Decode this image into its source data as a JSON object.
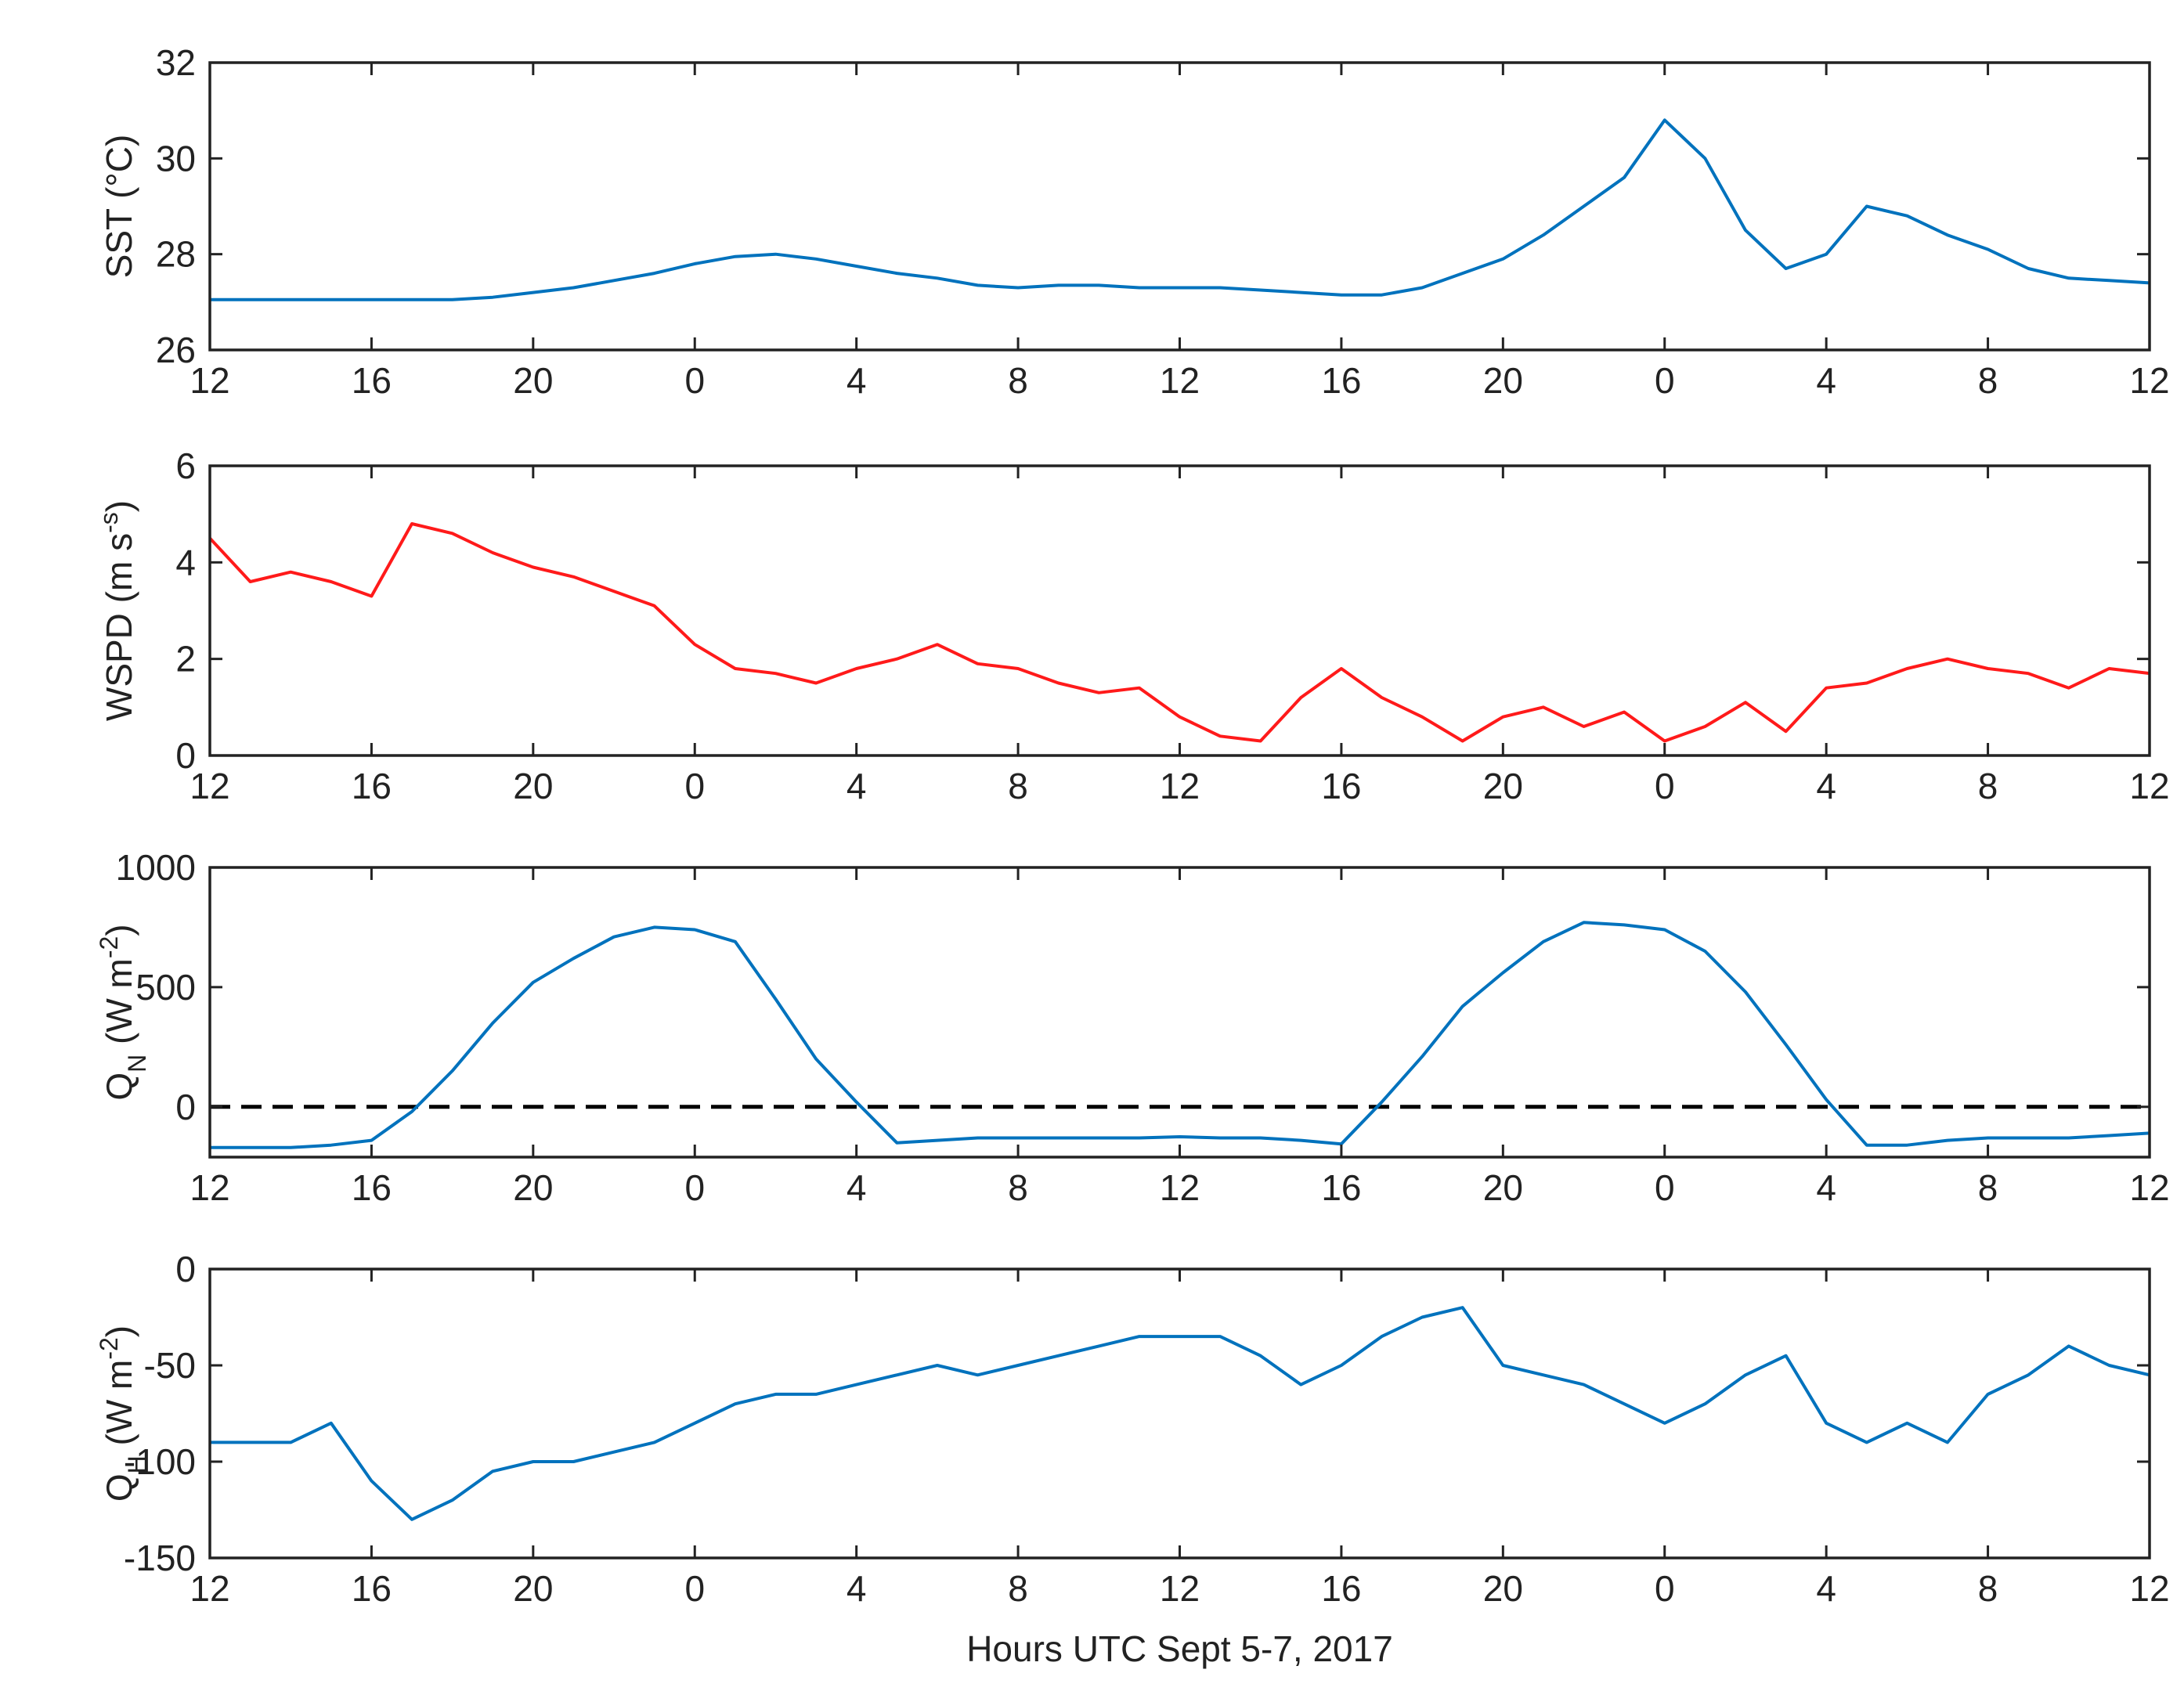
{
  "chart_data": [
    {
      "type": "line",
      "ylabel": [
        {
          "text": "SST  (°C)"
        }
      ],
      "x": [
        0,
        1,
        2,
        3,
        4,
        5,
        6,
        7,
        8,
        9,
        10,
        11,
        12,
        13,
        14,
        15,
        16,
        17,
        18,
        19,
        20,
        21,
        22,
        23,
        24,
        25,
        26,
        27,
        28,
        29,
        30,
        31,
        32,
        33,
        34,
        35,
        36,
        37,
        38,
        39,
        40,
        41,
        42,
        43,
        44,
        45,
        46,
        47,
        48
      ],
      "xlim": [
        0,
        48
      ],
      "xticks": [
        {
          "value": 0,
          "label": "12"
        },
        {
          "value": 4,
          "label": "16"
        },
        {
          "value": 8,
          "label": "20"
        },
        {
          "value": 12,
          "label": "0"
        },
        {
          "value": 16,
          "label": "4"
        },
        {
          "value": 20,
          "label": "8"
        },
        {
          "value": 24,
          "label": "12"
        },
        {
          "value": 28,
          "label": "16"
        },
        {
          "value": 32,
          "label": "20"
        },
        {
          "value": 36,
          "label": "0"
        },
        {
          "value": 40,
          "label": "4"
        },
        {
          "value": 44,
          "label": "8"
        },
        {
          "value": 48,
          "label": "12"
        }
      ],
      "ylim": [
        26,
        32
      ],
      "yticks": [
        26,
        28,
        30,
        32
      ],
      "color": "#0072bd",
      "values": [
        27.05,
        27.05,
        27.05,
        27.05,
        27.05,
        27.05,
        27.05,
        27.1,
        27.2,
        27.3,
        27.45,
        27.6,
        27.8,
        27.95,
        28.0,
        27.9,
        27.75,
        27.6,
        27.5,
        27.35,
        27.3,
        27.35,
        27.35,
        27.3,
        27.3,
        27.3,
        27.25,
        27.2,
        27.15,
        27.15,
        27.3,
        27.6,
        27.9,
        28.4,
        29.0,
        29.6,
        30.8,
        30.0,
        28.5,
        27.7,
        28.0,
        29.0,
        28.8,
        28.4,
        28.1,
        27.7,
        27.5,
        27.45,
        27.4
      ]
    },
    {
      "type": "line",
      "ylabel": [
        {
          "text": "WSPD  (m s"
        },
        {
          "sup": "-s"
        },
        {
          "text": ")"
        }
      ],
      "x": [
        0,
        1,
        2,
        3,
        4,
        5,
        6,
        7,
        8,
        9,
        10,
        11,
        12,
        13,
        14,
        15,
        16,
        17,
        18,
        19,
        20,
        21,
        22,
        23,
        24,
        25,
        26,
        27,
        28,
        29,
        30,
        31,
        32,
        33,
        34,
        35,
        36,
        37,
        38,
        39,
        40,
        41,
        42,
        43,
        44,
        45,
        46,
        47,
        48
      ],
      "xlim": [
        0,
        48
      ],
      "xticks": [
        {
          "value": 0,
          "label": "12"
        },
        {
          "value": 4,
          "label": "16"
        },
        {
          "value": 8,
          "label": "20"
        },
        {
          "value": 12,
          "label": "0"
        },
        {
          "value": 16,
          "label": "4"
        },
        {
          "value": 20,
          "label": "8"
        },
        {
          "value": 24,
          "label": "12"
        },
        {
          "value": 28,
          "label": "16"
        },
        {
          "value": 32,
          "label": "20"
        },
        {
          "value": 36,
          "label": "0"
        },
        {
          "value": 40,
          "label": "4"
        },
        {
          "value": 44,
          "label": "8"
        },
        {
          "value": 48,
          "label": "12"
        }
      ],
      "ylim": [
        0,
        6
      ],
      "yticks": [
        0,
        2,
        4,
        6
      ],
      "color": "#ff1a1a",
      "values": [
        4.5,
        3.6,
        3.8,
        3.6,
        3.3,
        4.8,
        4.6,
        4.2,
        3.9,
        3.7,
        3.4,
        3.1,
        2.3,
        1.8,
        1.7,
        1.5,
        1.8,
        2.0,
        2.3,
        1.9,
        1.8,
        1.5,
        1.3,
        1.4,
        0.8,
        0.4,
        0.3,
        1.2,
        1.8,
        1.2,
        0.8,
        0.3,
        0.8,
        1.0,
        0.6,
        0.9,
        0.3,
        0.6,
        1.1,
        0.5,
        1.4,
        1.5,
        1.8,
        2.0,
        1.8,
        1.7,
        1.4,
        1.8,
        1.7
      ]
    },
    {
      "type": "line",
      "ylabel": [
        {
          "text": "Q"
        },
        {
          "sub": "N"
        },
        {
          "text": "  (W m"
        },
        {
          "sup": "-2"
        },
        {
          "text": ")"
        }
      ],
      "x": [
        0,
        1,
        2,
        3,
        4,
        5,
        6,
        7,
        8,
        9,
        10,
        11,
        12,
        13,
        14,
        15,
        16,
        17,
        18,
        19,
        20,
        21,
        22,
        23,
        24,
        25,
        26,
        27,
        28,
        29,
        30,
        31,
        32,
        33,
        34,
        35,
        36,
        37,
        38,
        39,
        40,
        41,
        42,
        43,
        44,
        45,
        46,
        47,
        48
      ],
      "xlim": [
        0,
        48
      ],
      "xticks": [
        {
          "value": 0,
          "label": "12"
        },
        {
          "value": 4,
          "label": "16"
        },
        {
          "value": 8,
          "label": "20"
        },
        {
          "value": 12,
          "label": "0"
        },
        {
          "value": 16,
          "label": "4"
        },
        {
          "value": 20,
          "label": "8"
        },
        {
          "value": 24,
          "label": "12"
        },
        {
          "value": 28,
          "label": "16"
        },
        {
          "value": 32,
          "label": "20"
        },
        {
          "value": 36,
          "label": "0"
        },
        {
          "value": 40,
          "label": "4"
        },
        {
          "value": 44,
          "label": "8"
        },
        {
          "value": 48,
          "label": "12"
        }
      ],
      "ylim": [
        -210,
        1000
      ],
      "yticks": [
        0,
        500,
        1000
      ],
      "color": "#0072bd",
      "reference_line": {
        "value": 0,
        "style": "dashed",
        "color": "#000000"
      },
      "values": [
        -170,
        -170,
        -170,
        -160,
        -140,
        -20,
        150,
        350,
        520,
        620,
        710,
        750,
        740,
        690,
        450,
        200,
        20,
        -150,
        -140,
        -130,
        -130,
        -130,
        -130,
        -130,
        -125,
        -130,
        -130,
        -140,
        -155,
        20,
        210,
        420,
        560,
        690,
        770,
        760,
        740,
        650,
        480,
        260,
        30,
        -160,
        -160,
        -140,
        -130,
        -130,
        -130,
        -120,
        -110
      ]
    },
    {
      "type": "line",
      "ylabel": [
        {
          "text": "Q"
        },
        {
          "sub": "H"
        },
        {
          "text": "  (W m"
        },
        {
          "sup": "-2"
        },
        {
          "text": ")"
        }
      ],
      "xlabel": "Hours UTC Sept 5-7, 2017",
      "x": [
        0,
        1,
        2,
        3,
        4,
        5,
        6,
        7,
        8,
        9,
        10,
        11,
        12,
        13,
        14,
        15,
        16,
        17,
        18,
        19,
        20,
        21,
        22,
        23,
        24,
        25,
        26,
        27,
        28,
        29,
        30,
        31,
        32,
        33,
        34,
        35,
        36,
        37,
        38,
        39,
        40,
        41,
        42,
        43,
        44,
        45,
        46,
        47,
        48
      ],
      "xlim": [
        0,
        48
      ],
      "xticks": [
        {
          "value": 0,
          "label": "12"
        },
        {
          "value": 4,
          "label": "16"
        },
        {
          "value": 8,
          "label": "20"
        },
        {
          "value": 12,
          "label": "0"
        },
        {
          "value": 16,
          "label": "4"
        },
        {
          "value": 20,
          "label": "8"
        },
        {
          "value": 24,
          "label": "12"
        },
        {
          "value": 28,
          "label": "16"
        },
        {
          "value": 32,
          "label": "20"
        },
        {
          "value": 36,
          "label": "0"
        },
        {
          "value": 40,
          "label": "4"
        },
        {
          "value": 44,
          "label": "8"
        },
        {
          "value": 48,
          "label": "12"
        }
      ],
      "ylim": [
        -150,
        0
      ],
      "yticks": [
        -150,
        -100,
        -50,
        0
      ],
      "color": "#0072bd",
      "values": [
        -90,
        -90,
        -90,
        -80,
        -110,
        -130,
        -120,
        -105,
        -100,
        -100,
        -95,
        -90,
        -80,
        -70,
        -65,
        -65,
        -60,
        -55,
        -50,
        -55,
        -50,
        -45,
        -40,
        -35,
        -35,
        -35,
        -45,
        -60,
        -50,
        -35,
        -25,
        -20,
        -50,
        -55,
        -60,
        -70,
        -80,
        -70,
        -55,
        -45,
        -80,
        -90,
        -80,
        -90,
        -65,
        -55,
        -40,
        -50,
        -55
      ]
    }
  ]
}
